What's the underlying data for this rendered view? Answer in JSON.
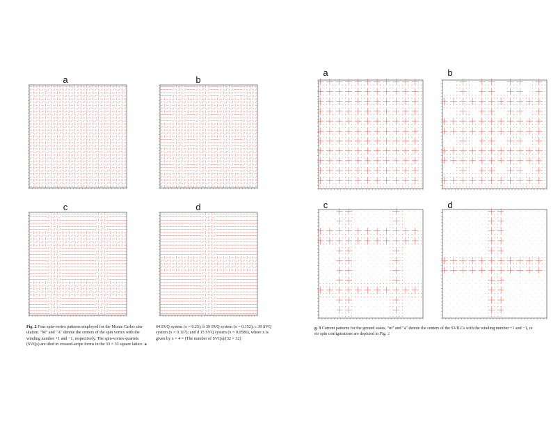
{
  "left_figure": {
    "panels": [
      "a",
      "b",
      "c",
      "d"
    ],
    "caption": {
      "label": "Fig. 2",
      "col1_line1": "Four spin-vortex patterns employed for the Monte Carlos sim-",
      "col1_line2": "ulation. \"M\" and \"A\" denote the centers of the spin vortex with the",
      "col1_line3": "winding number +1 and −1, respectively. The spin-vortex-quartets",
      "col1_line4": "(SVQs) are tiled in crossed-stripe forms in the 33 × 33 square lattice.",
      "col1_end": "a",
      "col2_line1": "64 SVQ system (x = 0.25); b 39 SVQ system (x = 0.152); c 30 SVQ",
      "col2_line2": "system (x = 0.117); and d 15 SVQ system (x = 0.0586), where x is",
      "col2_line3": "given by x = 4 × (The number of SVQs)/(32 × 32)"
    }
  },
  "right_figure": {
    "panels": [
      "a",
      "b",
      "c",
      "d"
    ],
    "caption": {
      "label": "g. 3",
      "line1": "Current patterns for the ground states. \"m\" and \"a\" denote the centers of the SVILCs with the winding number +1 and −1, re",
      "line2_a": "eir spin configurations are depicted in Fig.",
      "line2_link": "2"
    }
  },
  "colors": {
    "arrow": "#e0524a",
    "dot": "#e0524a",
    "frame": "#333333",
    "tick": "#555555"
  }
}
